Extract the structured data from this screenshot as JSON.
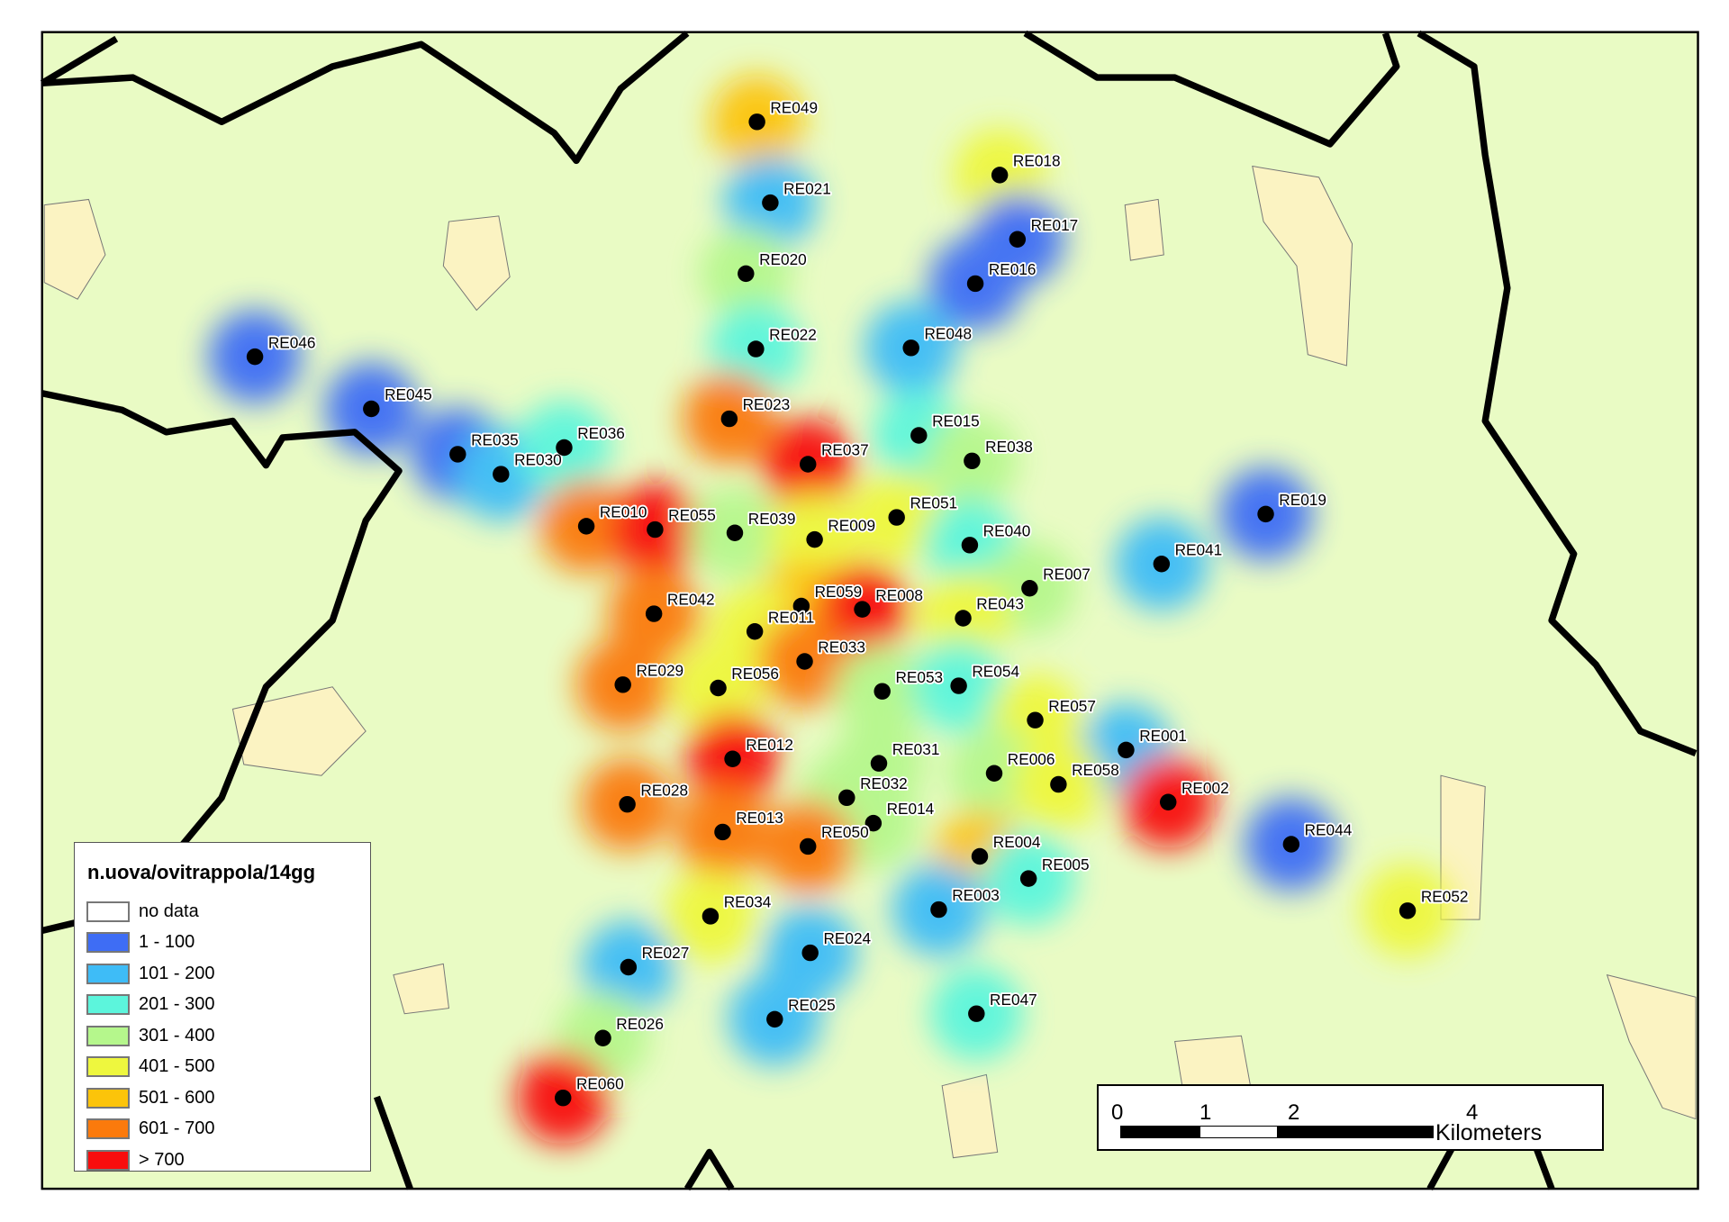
{
  "legend": {
    "title": "n.uova/ovitrappola/14gg",
    "classes": [
      {
        "label": "no data",
        "color": "#ffffff"
      },
      {
        "label": "1 - 100",
        "color": "#3e6df5"
      },
      {
        "label": "101 - 200",
        "color": "#3ebcf7"
      },
      {
        "label": "201 - 300",
        "color": "#5cf5dc"
      },
      {
        "label": "301 - 400",
        "color": "#b5f78c"
      },
      {
        "label": "401 - 500",
        "color": "#eef73e"
      },
      {
        "label": "501 - 600",
        "color": "#fcc40a"
      },
      {
        "label": "601 - 700",
        "color": "#fb7a0c"
      },
      {
        "label": "> 700",
        "color": "#f80d0d"
      }
    ]
  },
  "scalebar": {
    "ticks": [
      "0",
      "1",
      "2",
      "4"
    ],
    "unit": "Kilometers"
  },
  "colors": {
    "background": "#e9fbc4",
    "urban": "#fbf3c2",
    "boundary": "#000000"
  },
  "sites": [
    {
      "id": "RE049",
      "class": "501 - 600"
    },
    {
      "id": "RE021",
      "class": "101 - 200"
    },
    {
      "id": "RE020",
      "class": "301 - 400"
    },
    {
      "id": "RE022",
      "class": "201 - 300"
    },
    {
      "id": "RE023",
      "class": "601 - 700"
    },
    {
      "id": "RE018",
      "class": "401 - 500"
    },
    {
      "id": "RE017",
      "class": "1 - 100"
    },
    {
      "id": "RE016",
      "class": "1 - 100"
    },
    {
      "id": "RE048",
      "class": "101 - 200"
    },
    {
      "id": "RE046",
      "class": "1 - 100"
    },
    {
      "id": "RE045",
      "class": "1 - 100"
    },
    {
      "id": "RE035",
      "class": "1 - 100"
    },
    {
      "id": "RE030",
      "class": "101 - 200"
    },
    {
      "id": "RE036",
      "class": "201 - 300"
    },
    {
      "id": "RE015",
      "class": "201 - 300"
    },
    {
      "id": "RE038",
      "class": "301 - 400"
    },
    {
      "id": "RE037",
      "class": "> 700"
    },
    {
      "id": "RE010",
      "class": "601 - 700"
    },
    {
      "id": "RE055",
      "class": "> 700"
    },
    {
      "id": "RE039",
      "class": "301 - 400"
    },
    {
      "id": "RE009",
      "class": "401 - 500"
    },
    {
      "id": "RE051",
      "class": "401 - 500"
    },
    {
      "id": "RE040",
      "class": "201 - 300"
    },
    {
      "id": "RE019",
      "class": "1 - 100"
    },
    {
      "id": "RE041",
      "class": "101 - 200"
    },
    {
      "id": "RE007",
      "class": "301 - 400"
    },
    {
      "id": "RE042",
      "class": "601 - 700"
    },
    {
      "id": "RE059",
      "class": "501 - 600"
    },
    {
      "id": "RE008",
      "class": "> 700"
    },
    {
      "id": "RE011",
      "class": "401 - 500"
    },
    {
      "id": "RE043",
      "class": "401 - 500"
    },
    {
      "id": "RE033",
      "class": "601 - 700"
    },
    {
      "id": "RE029",
      "class": "601 - 700"
    },
    {
      "id": "RE056",
      "class": "401 - 500"
    },
    {
      "id": "RE053",
      "class": "301 - 400"
    },
    {
      "id": "RE054",
      "class": "201 - 300"
    },
    {
      "id": "RE057",
      "class": "401 - 500"
    },
    {
      "id": "RE001",
      "class": "101 - 200"
    },
    {
      "id": "RE031",
      "class": "301 - 400"
    },
    {
      "id": "RE006",
      "class": "301 - 400"
    },
    {
      "id": "RE058",
      "class": "401 - 500"
    },
    {
      "id": "RE012",
      "class": "> 700"
    },
    {
      "id": "RE002",
      "class": "> 700"
    },
    {
      "id": "RE028",
      "class": "601 - 700"
    },
    {
      "id": "RE032",
      "class": "301 - 400"
    },
    {
      "id": "RE014",
      "class": "301 - 400"
    },
    {
      "id": "RE013",
      "class": "601 - 700"
    },
    {
      "id": "RE050",
      "class": "601 - 700"
    },
    {
      "id": "RE004",
      "class": "501 - 600"
    },
    {
      "id": "RE044",
      "class": "1 - 100"
    },
    {
      "id": "RE005",
      "class": "201 - 300"
    },
    {
      "id": "RE003",
      "class": "101 - 200"
    },
    {
      "id": "RE034",
      "class": "401 - 500"
    },
    {
      "id": "RE052",
      "class": "401 - 500"
    },
    {
      "id": "RE024",
      "class": "101 - 200"
    },
    {
      "id": "RE027",
      "class": "101 - 200"
    },
    {
      "id": "RE047",
      "class": "201 - 300"
    },
    {
      "id": "RE025",
      "class": "101 - 200"
    },
    {
      "id": "RE026",
      "class": "301 - 400"
    },
    {
      "id": "RE060",
      "class": "> 700"
    }
  ]
}
